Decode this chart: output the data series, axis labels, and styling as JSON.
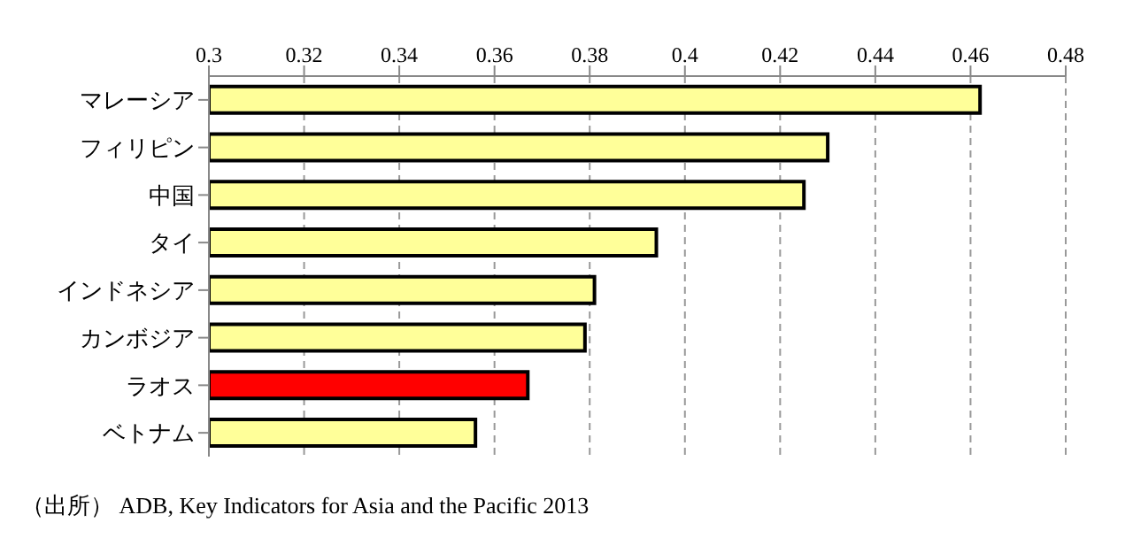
{
  "chart_data": {
    "type": "bar",
    "orientation": "horizontal",
    "categories": [
      "マレーシア",
      "フィリピン",
      "中国",
      "タイ",
      "インドネシア",
      "カンボジア",
      "ラオス",
      "ベトナム"
    ],
    "values": [
      0.462,
      0.43,
      0.425,
      0.394,
      0.381,
      0.379,
      0.367,
      0.356
    ],
    "colors": [
      "#ffff99",
      "#ffff99",
      "#ffff99",
      "#ffff99",
      "#ffff99",
      "#ffff99",
      "#ff0000",
      "#ffff99"
    ],
    "xlim": [
      0.3,
      0.48
    ],
    "xticks": [
      0.3,
      0.32,
      0.34,
      0.36,
      0.38,
      0.4,
      0.42,
      0.44,
      0.46,
      0.48
    ],
    "grid": "x",
    "annotations": [
      "（出所） ADB, Key Indicators for Asia and the Pacific 2013"
    ]
  }
}
